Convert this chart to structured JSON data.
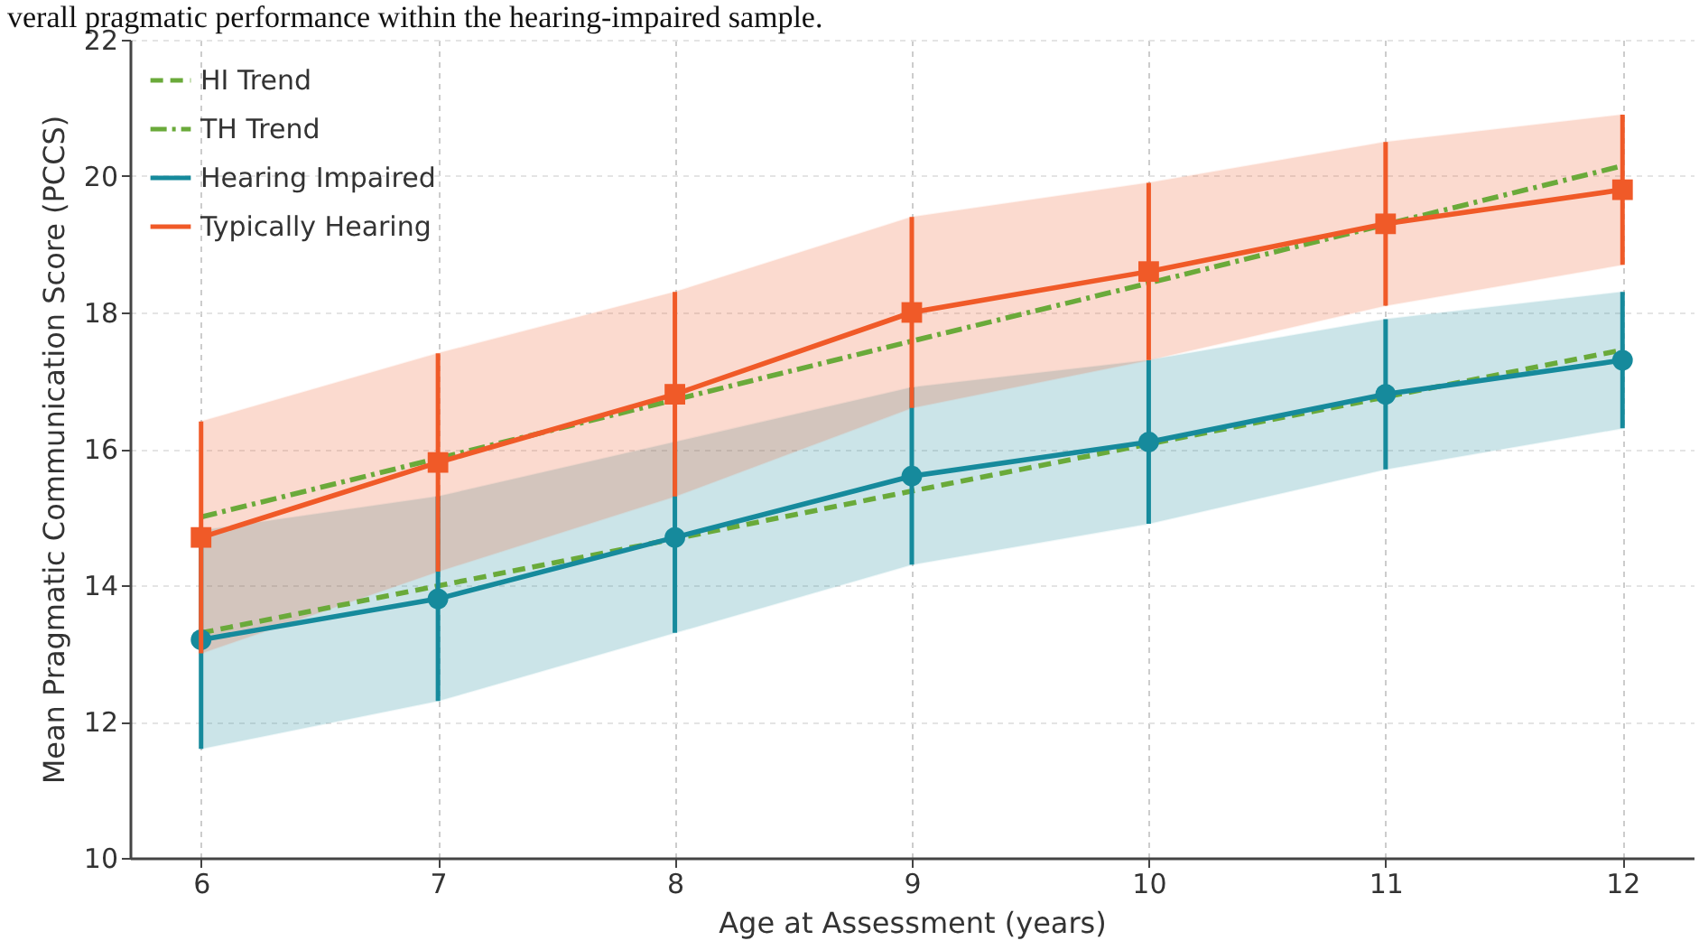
{
  "chart_data": {
    "type": "line",
    "xlabel": "Age at Assessment (years)",
    "ylabel": "Mean Pragmatic Communication Score (PCCS)",
    "annotations": [
      "verall pragmatic performance within the hearing-impaired sample."
    ],
    "x": [
      6,
      7,
      8,
      9,
      10,
      11,
      12
    ],
    "xlim": [
      5.7,
      12.3
    ],
    "xticks": [
      6,
      7,
      8,
      9,
      10,
      11,
      12
    ],
    "ylim": [
      10,
      22
    ],
    "yticks": [
      10,
      12,
      14,
      16,
      18,
      20,
      22
    ],
    "grid": true,
    "legend": "top left",
    "series": [
      {
        "name": "HI Trend",
        "color": "#6aaa3a",
        "line_style": "dashed",
        "marker": "none",
        "values": [
          13.3,
          13.99,
          14.68,
          15.38,
          16.07,
          16.76,
          17.45
        ]
      },
      {
        "name": "TH Trend",
        "color": "#6aaa3a",
        "line_style": "dashdot",
        "marker": "none",
        "values": [
          15.0,
          15.86,
          16.72,
          17.58,
          18.43,
          19.29,
          20.15
        ]
      },
      {
        "name": "Hearing Impaired",
        "color": "#168a9c",
        "line_style": "solid",
        "marker": "circle",
        "values": [
          13.2,
          13.8,
          14.7,
          15.6,
          16.1,
          16.8,
          17.3
        ],
        "errors": [
          1.6,
          1.5,
          1.4,
          1.3,
          1.2,
          1.1,
          1.0
        ],
        "lower": [
          11.6,
          12.3,
          13.3,
          14.3,
          14.9,
          15.7,
          16.3
        ],
        "upper": [
          14.8,
          15.3,
          16.1,
          16.9,
          17.3,
          17.9,
          18.3
        ]
      },
      {
        "name": "Typically Hearing",
        "color": "#f05a28",
        "line_style": "solid",
        "marker": "square",
        "values": [
          14.7,
          15.8,
          16.8,
          18.0,
          18.6,
          19.3,
          19.8
        ],
        "errors": [
          1.7,
          1.6,
          1.5,
          1.4,
          1.3,
          1.2,
          1.1
        ],
        "lower": [
          13.0,
          14.2,
          15.3,
          16.6,
          17.3,
          18.1,
          18.7
        ],
        "upper": [
          16.4,
          17.4,
          18.3,
          19.4,
          19.9,
          20.5,
          20.9
        ]
      }
    ]
  }
}
